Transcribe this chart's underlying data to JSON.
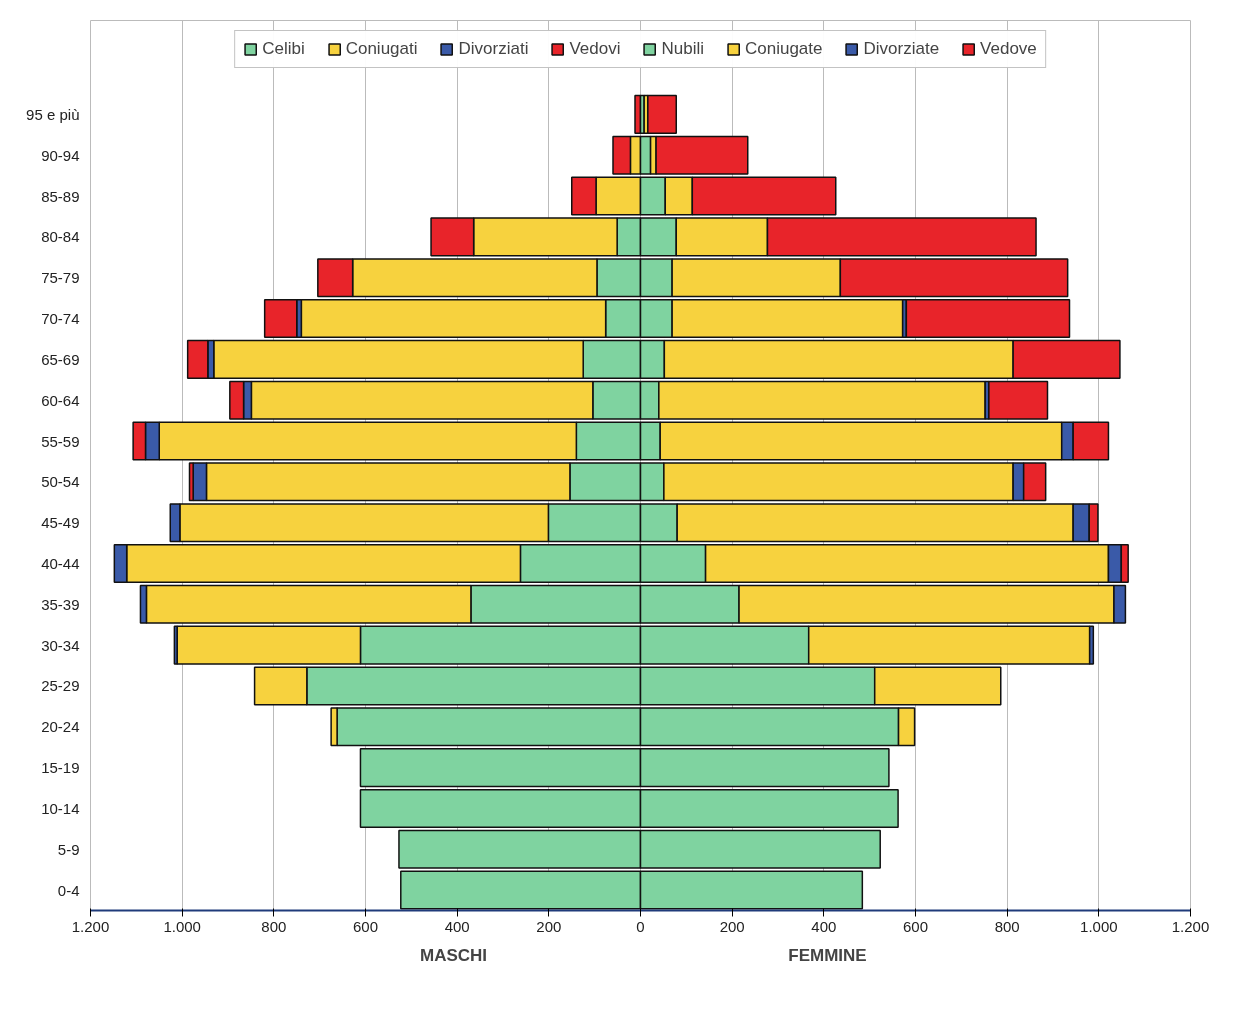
{
  "chart_data": {
    "type": "bar",
    "orientation": "horizontal",
    "stacked": true,
    "categories": [
      "95 e più",
      "90-94",
      "85-89",
      "80-84",
      "75-79",
      "70-74",
      "65-69",
      "60-64",
      "55-59",
      "50-54",
      "45-49",
      "40-44",
      "35-39",
      "30-34",
      "25-29",
      "20-24",
      "15-19",
      "10-14",
      "5-9",
      "0-4"
    ],
    "series": [
      {
        "name": "Celibi",
        "color": "#7fd3a0",
        "values": [
          null,
          null,
          null,
          -51,
          -95,
          -76,
          -125,
          -104,
          -140,
          -154,
          -201,
          -262,
          -370,
          -611,
          -728,
          -662,
          -611,
          -611,
          -527,
          -523
        ]
      },
      {
        "name": "Coniugati",
        "color": "#f7d23e",
        "values": [
          null,
          -22,
          -97,
          -313,
          -533,
          -664,
          -806,
          -745,
          -910,
          -793,
          -804,
          -859,
          -708,
          -400,
          -114,
          -13,
          0,
          0,
          0,
          0
        ]
      },
      {
        "name": "Divorziati",
        "color": "#3a5aa8",
        "values": [
          0,
          0,
          0,
          0,
          0,
          -10,
          -13,
          -17,
          -30,
          -29,
          -21,
          -27,
          -13,
          -6,
          0,
          0,
          0,
          0,
          0,
          0
        ]
      },
      {
        "name": "Vedovi",
        "color": "#e8242a",
        "values": [
          -12,
          -38,
          -53,
          -93,
          -76,
          -70,
          -44,
          -30,
          -27,
          -8,
          0,
          0,
          0,
          0,
          0,
          0,
          0,
          0,
          0,
          0
        ]
      },
      {
        "name": "Nubili",
        "color": "#7fd3a0",
        "values": [
          8,
          22,
          54,
          78,
          69,
          69,
          52,
          40,
          43,
          51,
          80,
          142,
          215,
          367,
          511,
          563,
          542,
          562,
          523,
          484
        ]
      },
      {
        "name": "Coniugate",
        "color": "#f7d23e",
        "values": [
          8,
          12,
          59,
          199,
          367,
          503,
          761,
          712,
          876,
          762,
          864,
          879,
          818,
          613,
          275,
          35,
          0,
          0,
          0,
          0
        ]
      },
      {
        "name": "Divorziate",
        "color": "#3a5aa8",
        "values": [
          0,
          0,
          0,
          0,
          0,
          8,
          0,
          8,
          25,
          23,
          35,
          28,
          25,
          8,
          0,
          0,
          0,
          0,
          0,
          0
        ]
      },
      {
        "name": "Vedove",
        "color": "#e8242a",
        "values": [
          62,
          200,
          313,
          586,
          496,
          356,
          233,
          128,
          77,
          48,
          19,
          15,
          0,
          0,
          0,
          0,
          0,
          0,
          0,
          0
        ]
      }
    ],
    "xlim": [
      -1200,
      1200
    ],
    "xticks": [
      {
        "value": -1200,
        "label": "1.200"
      },
      {
        "value": -1000,
        "label": "1.000"
      },
      {
        "value": -800,
        "label": "800"
      },
      {
        "value": -600,
        "label": "600"
      },
      {
        "value": -400,
        "label": "400"
      },
      {
        "value": -200,
        "label": "200"
      },
      0,
      200,
      400,
      600,
      800,
      {
        "value": 1000,
        "label": "1.000"
      },
      {
        "value": 1200,
        "label": "1.200"
      }
    ],
    "annotations": [
      "MASCHI",
      "FEMMINE"
    ],
    "grid": "x",
    "legend": "top"
  }
}
